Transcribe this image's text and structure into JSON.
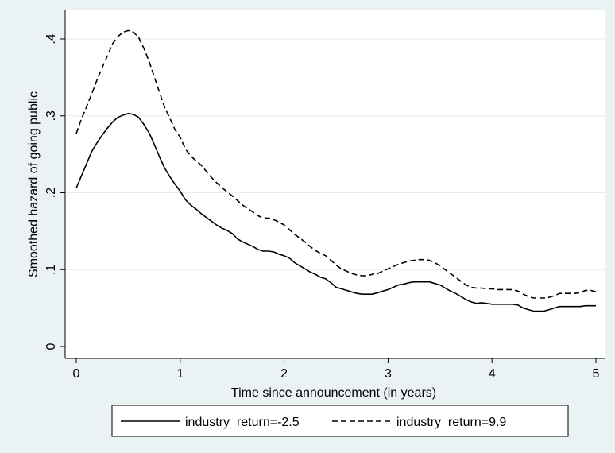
{
  "chart_data": {
    "type": "line",
    "xlabel": "Time since announcement (in years)",
    "ylabel": "Smoothed hazard of going public",
    "xlim": [
      0,
      5
    ],
    "ylim": [
      0,
      0.42
    ],
    "xticks": [
      {
        "value": 0,
        "label": "0"
      },
      {
        "value": 1,
        "label": "1"
      },
      {
        "value": 2,
        "label": "2"
      },
      {
        "value": 3,
        "label": "3"
      },
      {
        "value": 4,
        "label": "4"
      },
      {
        "value": 5,
        "label": "5"
      }
    ],
    "yticks": [
      {
        "value": 0,
        "label": "0"
      },
      {
        "value": 0.1,
        "label": ".1"
      },
      {
        "value": 0.2,
        "label": ".2"
      },
      {
        "value": 0.3,
        "label": ".3"
      },
      {
        "value": 0.4,
        "label": ".4"
      }
    ],
    "grid": "horizontal",
    "legend_position": "bottom",
    "series": [
      {
        "name": "industry_return=-2.5",
        "style": "solid",
        "color": "#000000",
        "points": [
          [
            0.0,
            0.206
          ],
          [
            0.05,
            0.222
          ],
          [
            0.1,
            0.238
          ],
          [
            0.15,
            0.254
          ],
          [
            0.2,
            0.265
          ],
          [
            0.25,
            0.275
          ],
          [
            0.3,
            0.284
          ],
          [
            0.35,
            0.292
          ],
          [
            0.4,
            0.298
          ],
          [
            0.45,
            0.301
          ],
          [
            0.5,
            0.303
          ],
          [
            0.55,
            0.302
          ],
          [
            0.6,
            0.298
          ],
          [
            0.65,
            0.289
          ],
          [
            0.7,
            0.278
          ],
          [
            0.75,
            0.263
          ],
          [
            0.8,
            0.247
          ],
          [
            0.85,
            0.232
          ],
          [
            0.9,
            0.221
          ],
          [
            0.95,
            0.211
          ],
          [
            1.0,
            0.202
          ],
          [
            1.05,
            0.191
          ],
          [
            1.1,
            0.184
          ],
          [
            1.15,
            0.179
          ],
          [
            1.2,
            0.173
          ],
          [
            1.25,
            0.168
          ],
          [
            1.3,
            0.163
          ],
          [
            1.35,
            0.158
          ],
          [
            1.4,
            0.154
          ],
          [
            1.45,
            0.151
          ],
          [
            1.5,
            0.147
          ],
          [
            1.55,
            0.14
          ],
          [
            1.6,
            0.136
          ],
          [
            1.65,
            0.133
          ],
          [
            1.7,
            0.13
          ],
          [
            1.75,
            0.126
          ],
          [
            1.8,
            0.124
          ],
          [
            1.85,
            0.124
          ],
          [
            1.9,
            0.123
          ],
          [
            1.95,
            0.12
          ],
          [
            2.0,
            0.118
          ],
          [
            2.05,
            0.115
          ],
          [
            2.1,
            0.109
          ],
          [
            2.15,
            0.105
          ],
          [
            2.2,
            0.101
          ],
          [
            2.25,
            0.097
          ],
          [
            2.3,
            0.094
          ],
          [
            2.35,
            0.09
          ],
          [
            2.4,
            0.088
          ],
          [
            2.45,
            0.083
          ],
          [
            2.5,
            0.077
          ],
          [
            2.55,
            0.075
          ],
          [
            2.6,
            0.073
          ],
          [
            2.65,
            0.071
          ],
          [
            2.7,
            0.069
          ],
          [
            2.75,
            0.068
          ],
          [
            2.8,
            0.068
          ],
          [
            2.85,
            0.068
          ],
          [
            2.9,
            0.07
          ],
          [
            2.95,
            0.072
          ],
          [
            3.0,
            0.074
          ],
          [
            3.05,
            0.077
          ],
          [
            3.1,
            0.08
          ],
          [
            3.15,
            0.081
          ],
          [
            3.2,
            0.083
          ],
          [
            3.25,
            0.084
          ],
          [
            3.3,
            0.084
          ],
          [
            3.35,
            0.084
          ],
          [
            3.4,
            0.084
          ],
          [
            3.45,
            0.082
          ],
          [
            3.5,
            0.08
          ],
          [
            3.55,
            0.076
          ],
          [
            3.6,
            0.072
          ],
          [
            3.65,
            0.069
          ],
          [
            3.7,
            0.065
          ],
          [
            3.75,
            0.061
          ],
          [
            3.8,
            0.058
          ],
          [
            3.85,
            0.056
          ],
          [
            3.9,
            0.057
          ],
          [
            3.95,
            0.056
          ],
          [
            4.0,
            0.055
          ],
          [
            4.05,
            0.055
          ],
          [
            4.1,
            0.055
          ],
          [
            4.15,
            0.055
          ],
          [
            4.2,
            0.055
          ],
          [
            4.25,
            0.054
          ],
          [
            4.3,
            0.05
          ],
          [
            4.35,
            0.048
          ],
          [
            4.4,
            0.046
          ],
          [
            4.45,
            0.046
          ],
          [
            4.5,
            0.046
          ],
          [
            4.55,
            0.048
          ],
          [
            4.6,
            0.05
          ],
          [
            4.65,
            0.052
          ],
          [
            4.7,
            0.052
          ],
          [
            4.75,
            0.052
          ],
          [
            4.8,
            0.052
          ],
          [
            4.85,
            0.052
          ],
          [
            4.9,
            0.053
          ],
          [
            4.95,
            0.053
          ],
          [
            5.0,
            0.053
          ]
        ]
      },
      {
        "name": "industry_return=9.9",
        "style": "dashed",
        "color": "#000000",
        "points": [
          [
            0.0,
            0.277
          ],
          [
            0.05,
            0.296
          ],
          [
            0.1,
            0.312
          ],
          [
            0.15,
            0.329
          ],
          [
            0.2,
            0.347
          ],
          [
            0.25,
            0.363
          ],
          [
            0.3,
            0.378
          ],
          [
            0.35,
            0.394
          ],
          [
            0.4,
            0.403
          ],
          [
            0.45,
            0.409
          ],
          [
            0.5,
            0.411
          ],
          [
            0.55,
            0.409
          ],
          [
            0.6,
            0.402
          ],
          [
            0.65,
            0.388
          ],
          [
            0.7,
            0.371
          ],
          [
            0.75,
            0.351
          ],
          [
            0.8,
            0.331
          ],
          [
            0.85,
            0.311
          ],
          [
            0.9,
            0.297
          ],
          [
            0.95,
            0.282
          ],
          [
            1.0,
            0.272
          ],
          [
            1.05,
            0.257
          ],
          [
            1.1,
            0.248
          ],
          [
            1.15,
            0.242
          ],
          [
            1.2,
            0.236
          ],
          [
            1.25,
            0.228
          ],
          [
            1.3,
            0.22
          ],
          [
            1.35,
            0.213
          ],
          [
            1.4,
            0.207
          ],
          [
            1.45,
            0.201
          ],
          [
            1.5,
            0.196
          ],
          [
            1.55,
            0.19
          ],
          [
            1.6,
            0.184
          ],
          [
            1.65,
            0.179
          ],
          [
            1.7,
            0.175
          ],
          [
            1.75,
            0.17
          ],
          [
            1.8,
            0.167
          ],
          [
            1.85,
            0.167
          ],
          [
            1.9,
            0.165
          ],
          [
            1.95,
            0.162
          ],
          [
            2.0,
            0.158
          ],
          [
            2.05,
            0.152
          ],
          [
            2.1,
            0.146
          ],
          [
            2.15,
            0.141
          ],
          [
            2.2,
            0.136
          ],
          [
            2.25,
            0.13
          ],
          [
            2.3,
            0.125
          ],
          [
            2.35,
            0.121
          ],
          [
            2.4,
            0.118
          ],
          [
            2.45,
            0.112
          ],
          [
            2.5,
            0.106
          ],
          [
            2.55,
            0.101
          ],
          [
            2.6,
            0.098
          ],
          [
            2.65,
            0.095
          ],
          [
            2.7,
            0.093
          ],
          [
            2.75,
            0.092
          ],
          [
            2.8,
            0.092
          ],
          [
            2.85,
            0.094
          ],
          [
            2.9,
            0.095
          ],
          [
            2.95,
            0.098
          ],
          [
            3.0,
            0.101
          ],
          [
            3.05,
            0.104
          ],
          [
            3.1,
            0.107
          ],
          [
            3.15,
            0.109
          ],
          [
            3.2,
            0.111
          ],
          [
            3.25,
            0.112
          ],
          [
            3.3,
            0.113
          ],
          [
            3.35,
            0.113
          ],
          [
            3.4,
            0.112
          ],
          [
            3.45,
            0.109
          ],
          [
            3.5,
            0.105
          ],
          [
            3.55,
            0.1
          ],
          [
            3.6,
            0.095
          ],
          [
            3.65,
            0.09
          ],
          [
            3.7,
            0.085
          ],
          [
            3.75,
            0.08
          ],
          [
            3.8,
            0.077
          ],
          [
            3.85,
            0.076
          ],
          [
            3.9,
            0.076
          ],
          [
            3.95,
            0.075
          ],
          [
            4.0,
            0.075
          ],
          [
            4.05,
            0.074
          ],
          [
            4.1,
            0.074
          ],
          [
            4.15,
            0.074
          ],
          [
            4.2,
            0.074
          ],
          [
            4.25,
            0.072
          ],
          [
            4.3,
            0.068
          ],
          [
            4.35,
            0.065
          ],
          [
            4.4,
            0.063
          ],
          [
            4.45,
            0.063
          ],
          [
            4.5,
            0.063
          ],
          [
            4.55,
            0.064
          ],
          [
            4.6,
            0.066
          ],
          [
            4.65,
            0.069
          ],
          [
            4.7,
            0.069
          ],
          [
            4.75,
            0.069
          ],
          [
            4.8,
            0.069
          ],
          [
            4.85,
            0.07
          ],
          [
            4.9,
            0.073
          ],
          [
            4.95,
            0.073
          ],
          [
            5.0,
            0.071
          ]
        ]
      }
    ]
  }
}
